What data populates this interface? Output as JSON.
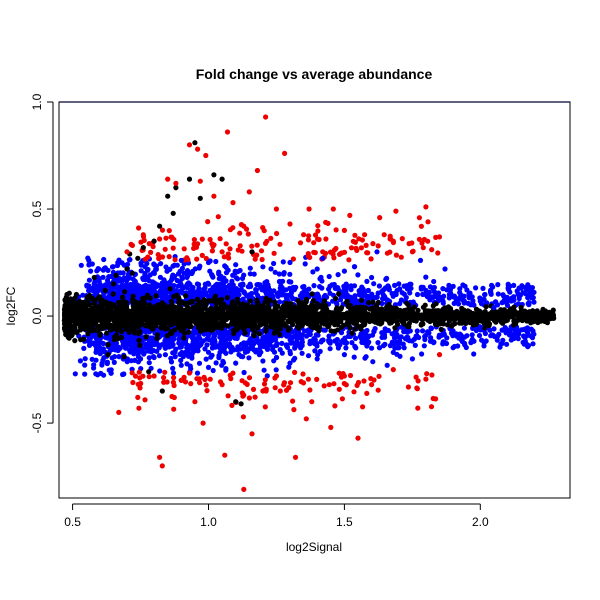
{
  "chart_data": {
    "type": "scatter",
    "title": "Fold change vs average abundance",
    "xlabel": "log2Signal",
    "ylabel": "log2FC",
    "xlim": [
      0.45,
      2.33
    ],
    "ylim": [
      -0.85,
      1.0
    ],
    "x_ticks": [
      0.5,
      1.0,
      1.5,
      2.0
    ],
    "x_tick_labels": [
      "0.5",
      "1.0",
      "1.5",
      "2.0"
    ],
    "y_ticks": [
      -0.5,
      0.0,
      0.5,
      1.0
    ],
    "y_tick_labels": [
      "-0.5",
      "0.0",
      "0.5",
      "1.0"
    ],
    "grid": false,
    "reference_line": {
      "y": 1.0,
      "color": "#0000ff"
    },
    "colors": {
      "not_significant": "#000000",
      "significant": "#0000ff",
      "large_change": "#ee0000"
    },
    "series": [
      {
        "color": "#000000",
        "points": [
          [
            0.48,
            -0.04
          ],
          [
            0.49,
            0.03
          ],
          [
            0.5,
            -0.07
          ],
          [
            0.52,
            0.06
          ],
          [
            0.55,
            -0.02
          ],
          [
            0.57,
            0.08
          ],
          [
            0.6,
            -0.09
          ],
          [
            0.62,
            0.12
          ],
          [
            0.65,
            0.15
          ],
          [
            0.66,
            0.19
          ],
          [
            0.68,
            -0.1
          ],
          [
            0.7,
            0.22
          ],
          [
            0.72,
            0.2
          ],
          [
            0.74,
            0.27
          ],
          [
            0.75,
            -0.2
          ],
          [
            0.76,
            0.32
          ],
          [
            0.78,
            -0.26
          ],
          [
            0.8,
            0.35
          ],
          [
            0.82,
            0.42
          ],
          [
            0.85,
            0.56
          ],
          [
            0.88,
            0.6
          ],
          [
            0.9,
            -0.3
          ],
          [
            0.95,
            0.81
          ],
          [
            0.93,
            0.64
          ],
          [
            0.97,
            0.55
          ],
          [
            1.02,
            0.66
          ],
          [
            1.05,
            0.64
          ],
          [
            1.1,
            -0.4
          ],
          [
            1.12,
            -0.41
          ],
          [
            1.0,
            0.02
          ],
          [
            1.2,
            0.01
          ],
          [
            1.4,
            -0.01
          ],
          [
            1.6,
            0.0
          ],
          [
            1.8,
            0.01
          ],
          [
            2.0,
            0.0
          ],
          [
            2.1,
            -0.01
          ],
          [
            2.15,
            0.04
          ],
          [
            2.2,
            -0.02
          ],
          [
            2.27,
            -0.01
          ],
          [
            2.24,
            0.01
          ],
          [
            0.63,
            -0.18
          ],
          [
            0.71,
            0.29
          ],
          [
            0.83,
            -0.35
          ],
          [
            0.58,
            0.18
          ],
          [
            0.53,
            -0.11
          ],
          [
            0.69,
            -0.19
          ],
          [
            0.87,
            0.48
          ],
          [
            1.16,
            0.3
          ]
        ]
      },
      {
        "color": "#0000ff",
        "points": [
          [
            0.8,
            0.24
          ],
          [
            0.9,
            0.26
          ],
          [
            1.0,
            0.25
          ],
          [
            1.1,
            0.24
          ],
          [
            1.2,
            0.23
          ],
          [
            1.3,
            0.25
          ],
          [
            1.4,
            0.22
          ],
          [
            1.5,
            0.21
          ],
          [
            1.6,
            0.18
          ],
          [
            1.7,
            0.15
          ],
          [
            1.8,
            0.12
          ],
          [
            1.9,
            0.09
          ],
          [
            2.0,
            0.07
          ],
          [
            2.1,
            0.05
          ],
          [
            2.14,
            0.1
          ],
          [
            0.75,
            -0.2
          ],
          [
            0.9,
            -0.23
          ],
          [
            1.0,
            -0.24
          ],
          [
            1.1,
            -0.22
          ],
          [
            1.2,
            -0.21
          ],
          [
            1.3,
            -0.22
          ],
          [
            1.4,
            -0.2
          ],
          [
            1.5,
            -0.18
          ],
          [
            1.6,
            -0.15
          ],
          [
            1.7,
            -0.13
          ],
          [
            1.8,
            -0.09
          ],
          [
            1.9,
            -0.07
          ],
          [
            2.0,
            -0.05
          ],
          [
            1.62,
            0.3
          ],
          [
            1.42,
            0.27
          ],
          [
            1.78,
            0.26
          ],
          [
            1.87,
            0.22
          ],
          [
            1.75,
            -0.2
          ],
          [
            1.58,
            -0.19
          ],
          [
            1.68,
            -0.17
          ],
          [
            2.05,
            0.04
          ]
        ]
      },
      {
        "color": "#ee0000",
        "points": [
          [
            1.21,
            0.93
          ],
          [
            1.07,
            0.86
          ],
          [
            0.99,
            0.75
          ],
          [
            1.28,
            0.76
          ],
          [
            0.93,
            0.8
          ],
          [
            0.96,
            0.78
          ],
          [
            1.18,
            0.68
          ],
          [
            0.85,
            0.64
          ],
          [
            1.15,
            0.58
          ],
          [
            0.88,
            0.62
          ],
          [
            0.97,
            0.63
          ],
          [
            1.25,
            0.5
          ],
          [
            1.09,
            0.53
          ],
          [
            1.02,
            0.56
          ],
          [
            1.37,
            0.5
          ],
          [
            1.52,
            0.47
          ],
          [
            1.63,
            0.46
          ],
          [
            1.8,
            0.51
          ],
          [
            1.85,
            0.37
          ],
          [
            1.68,
            0.35
          ],
          [
            1.42,
            0.3
          ],
          [
            1.5,
            0.4
          ],
          [
            1.58,
            0.33
          ],
          [
            1.35,
            0.38
          ],
          [
            1.3,
            0.43
          ],
          [
            1.13,
            0.42
          ],
          [
            0.76,
            0.38
          ],
          [
            0.72,
            0.33
          ],
          [
            0.7,
            0.3
          ],
          [
            0.82,
            0.36
          ],
          [
            1.05,
            0.3
          ],
          [
            1.75,
            0.3
          ],
          [
            0.82,
            -0.66
          ],
          [
            0.83,
            -0.7
          ],
          [
            1.06,
            -0.65
          ],
          [
            1.13,
            -0.81
          ],
          [
            1.32,
            -0.66
          ],
          [
            1.55,
            -0.57
          ],
          [
            1.45,
            -0.52
          ],
          [
            1.77,
            -0.43
          ],
          [
            1.36,
            -0.48
          ],
          [
            1.16,
            -0.55
          ],
          [
            0.98,
            -0.5
          ],
          [
            0.67,
            -0.45
          ],
          [
            0.74,
            -0.38
          ],
          [
            0.9,
            -0.3
          ],
          [
            1.2,
            -0.35
          ],
          [
            1.38,
            -0.4
          ],
          [
            1.6,
            -0.32
          ],
          [
            1.5,
            -0.28
          ],
          [
            1.25,
            -0.28
          ],
          [
            0.95,
            -0.4
          ],
          [
            0.8,
            -0.28
          ],
          [
            1.05,
            -0.32
          ],
          [
            1.68,
            -0.25
          ],
          [
            1.85,
            -0.18
          ]
        ]
      }
    ]
  }
}
